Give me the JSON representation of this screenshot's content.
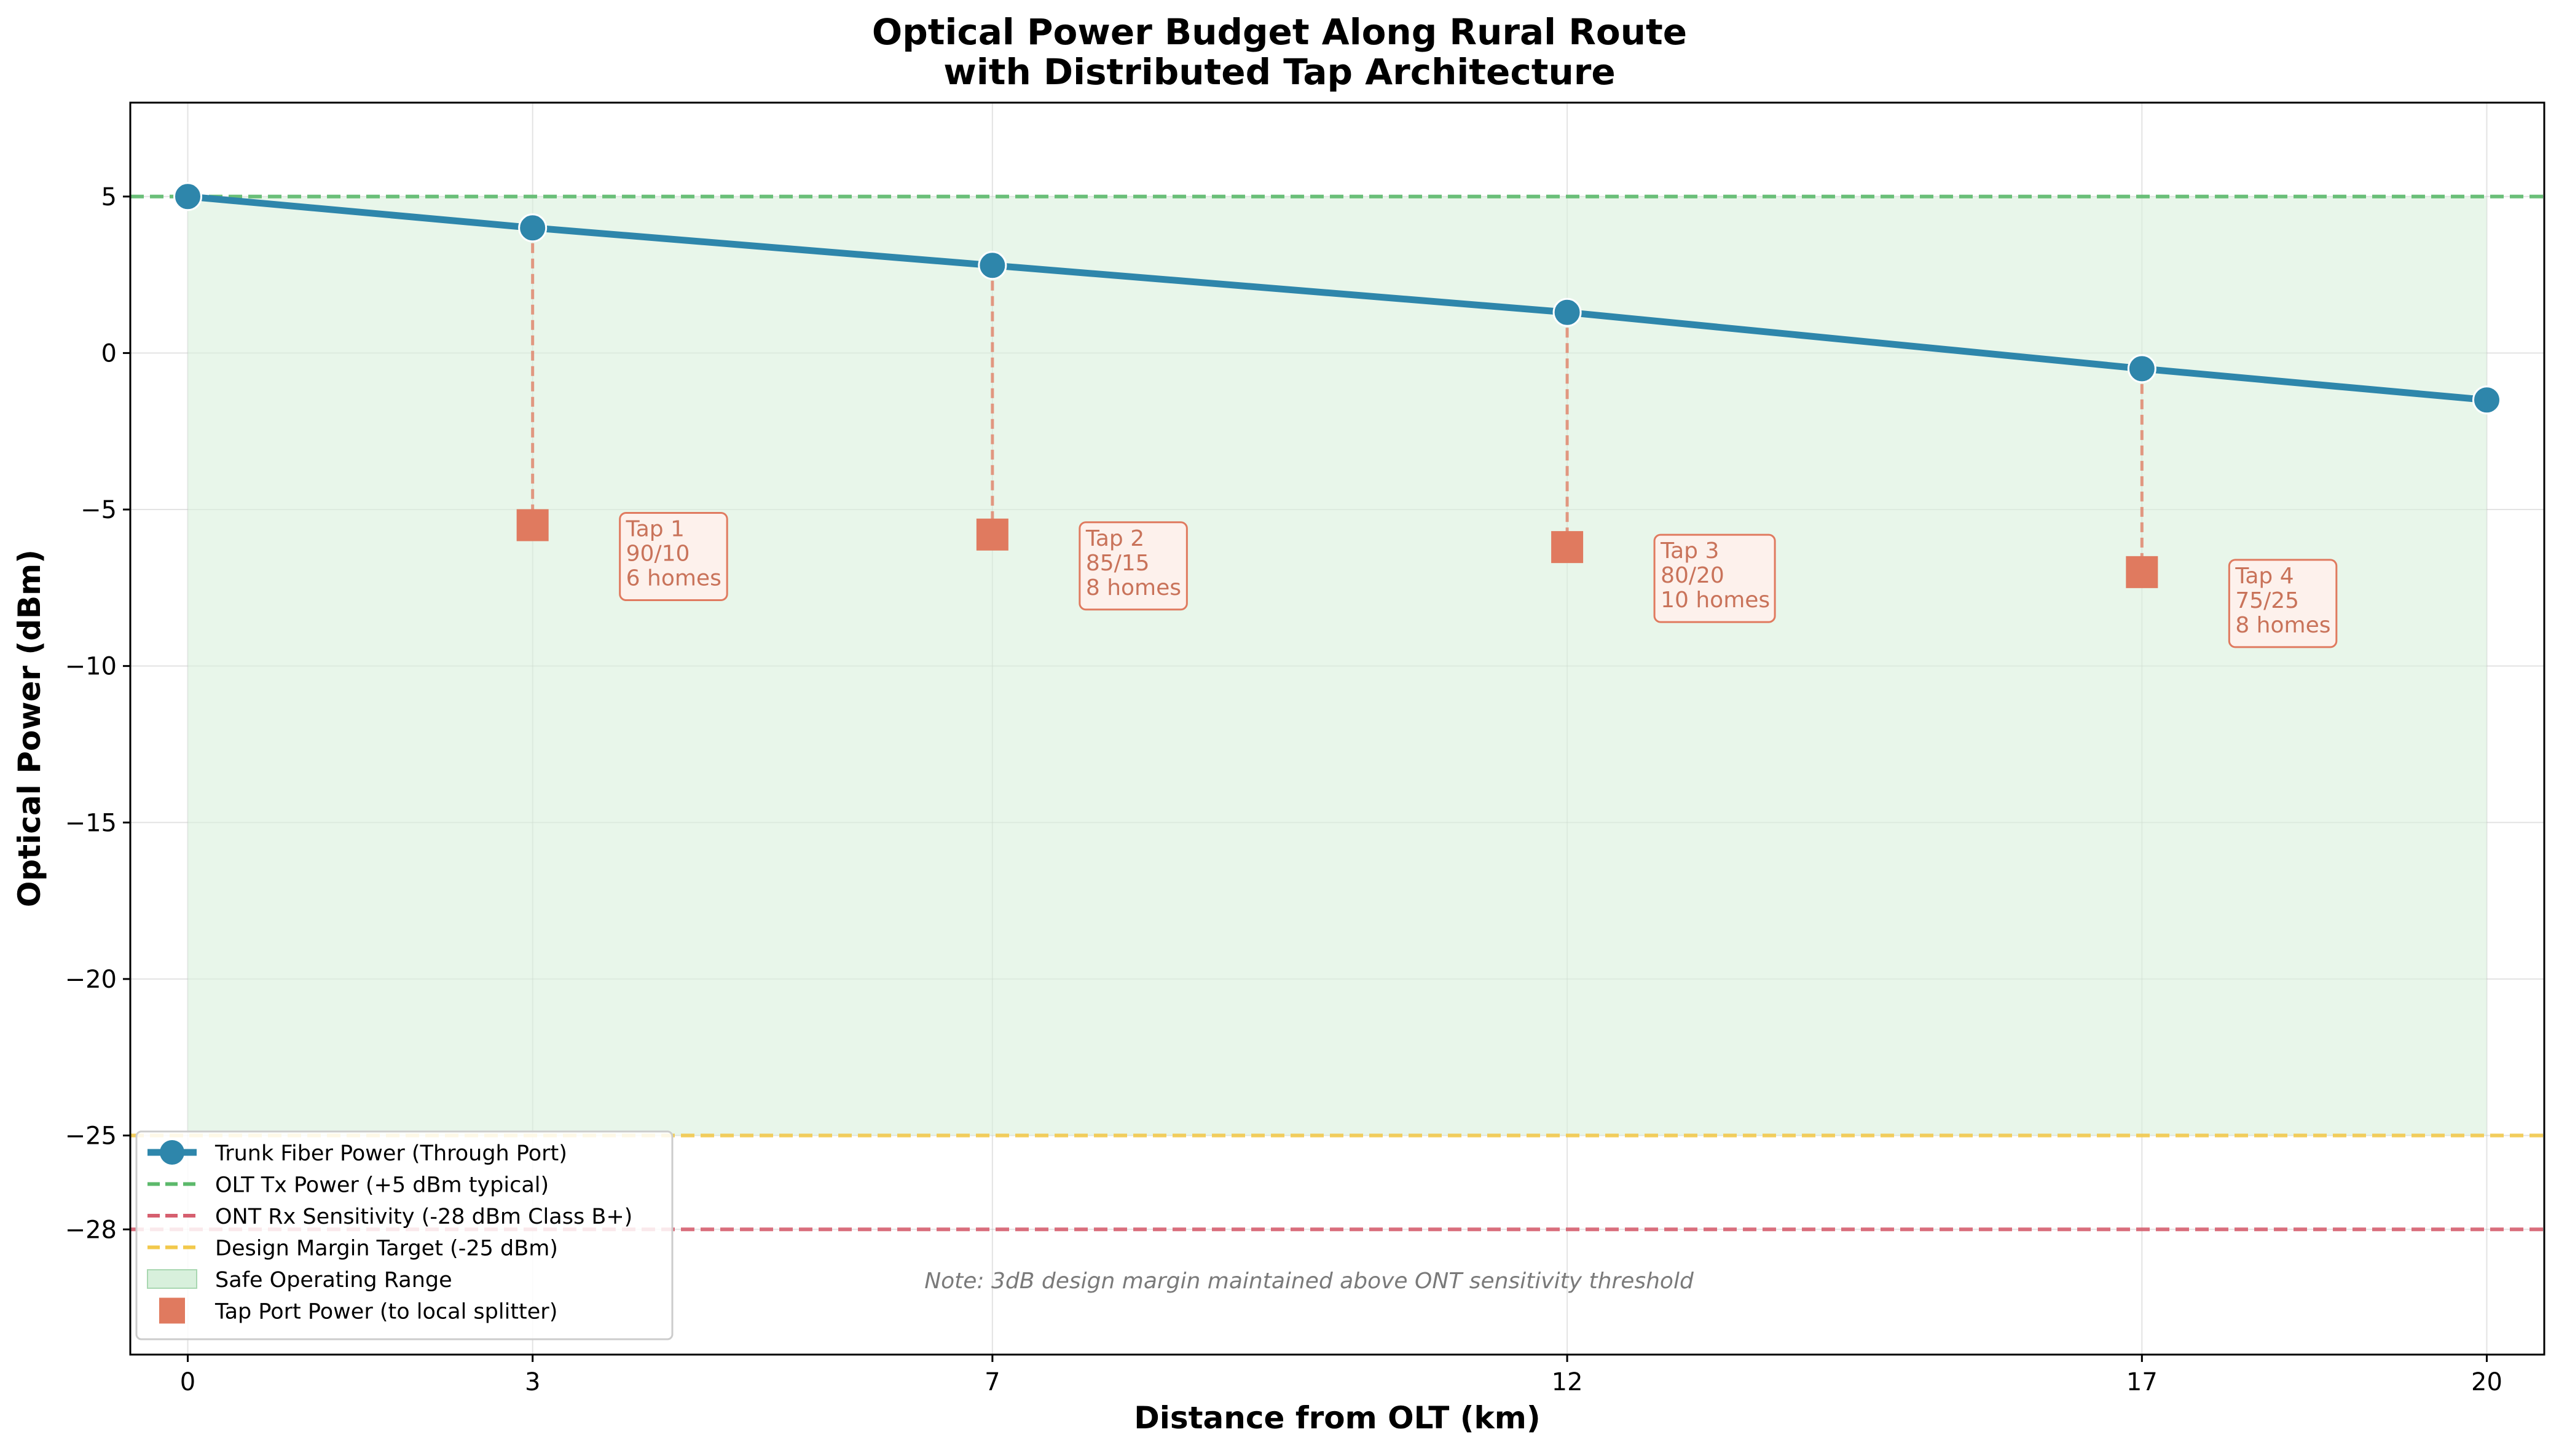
{
  "chart_data": {
    "type": "line",
    "title": [
      "Optical Power Budget Along Rural Route",
      "with Distributed Tap Architecture"
    ],
    "xlabel": "Distance from OLT (km)",
    "ylabel": "Optical Power (dBm)",
    "xlim": [
      -0.5,
      20.5
    ],
    "ylim": [
      -32,
      8
    ],
    "xticks": [
      0,
      3,
      7,
      12,
      17,
      20
    ],
    "yticks": [
      5,
      0,
      -5,
      -10,
      -15,
      -20,
      -25,
      -28
    ],
    "ytick_labels": [
      "5",
      "0",
      "−5",
      "−10",
      "−15",
      "−20",
      "−25",
      "−28"
    ],
    "grid": true,
    "legend_position": "lower-left",
    "series": [
      {
        "name": "Trunk Fiber Power (Through Port)",
        "kind": "line-marker",
        "color": "#2e86ab",
        "x": [
          0,
          3,
          7,
          12,
          17,
          20
        ],
        "y": [
          5.0,
          4.0,
          2.8,
          1.3,
          -0.5,
          -1.5
        ]
      },
      {
        "name": "Tap Port Power (to local splitter)",
        "kind": "square-marker",
        "color": "#e07a5f",
        "x": [
          3,
          7,
          12,
          17
        ],
        "y": [
          -5.5,
          -5.8,
          -6.2,
          -7.0
        ]
      }
    ],
    "reference_lines": [
      {
        "name": "OLT Tx Power (+5 dBm typical)",
        "y": 5,
        "color": "#5cb96b"
      },
      {
        "name": "ONT Rx Sensitivity (-28 dBm Class B+)",
        "y": -28,
        "color": "#d65f6f"
      },
      {
        "name": "Design Margin Target (-25 dBm)",
        "y": -25,
        "color": "#f2c94c"
      }
    ],
    "shaded_region": {
      "name": "Safe Operating Range",
      "x": [
        0,
        20
      ],
      "y": [
        -25,
        5
      ],
      "color": "#d8f0dc"
    },
    "legend_order": [
      "Trunk Fiber Power (Through Port)",
      "OLT Tx Power (+5 dBm typical)",
      "ONT Rx Sensitivity (-28 dBm Class B+)",
      "Design Margin Target (-25 dBm)",
      "Safe Operating Range",
      "Tap Port Power (to local splitter)"
    ],
    "annotations": [
      {
        "x": 3,
        "y": -5.5,
        "lines": [
          "Tap 1",
          "90/10",
          "6 homes"
        ]
      },
      {
        "x": 7,
        "y": -5.8,
        "lines": [
          "Tap 2",
          "85/15",
          "8 homes"
        ]
      },
      {
        "x": 12,
        "y": -6.2,
        "lines": [
          "Tap 3",
          "80/20",
          "10 homes"
        ]
      },
      {
        "x": 17,
        "y": -7.0,
        "lines": [
          "Tap 4",
          "75/25",
          "8 homes"
        ]
      }
    ],
    "note": "Note: 3dB design margin maintained above ONT sensitivity threshold"
  }
}
